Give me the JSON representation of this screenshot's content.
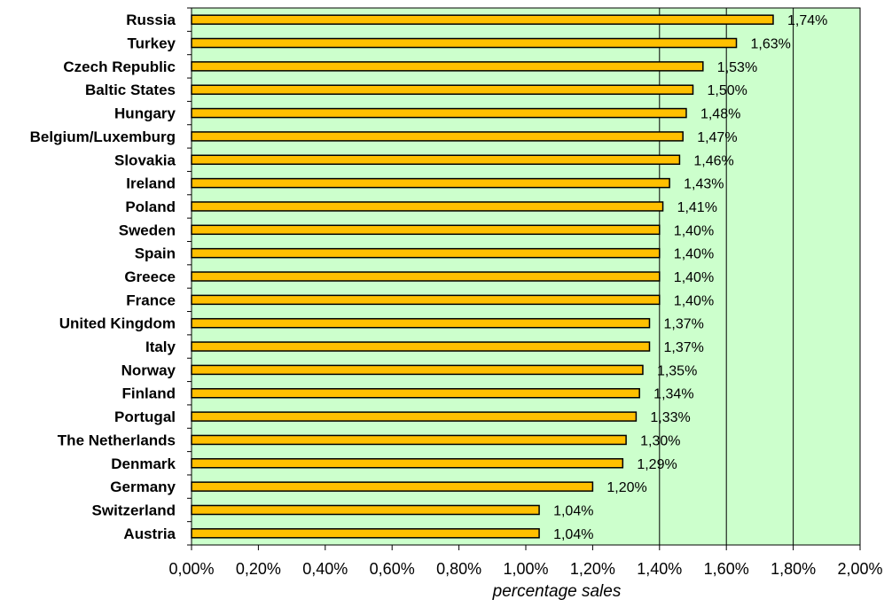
{
  "colors": {
    "plot_background": "#ccffcc",
    "bar_fill": "#ffc000",
    "bar_stroke": "#000000",
    "gridline": "#000000"
  },
  "chart_data": {
    "type": "bar",
    "orientation": "horizontal",
    "categories": [
      "Russia",
      "Turkey",
      "Czech Republic",
      "Baltic States",
      "Hungary",
      "Belgium/Luxemburg",
      "Slovakia",
      "Ireland",
      "Poland",
      "Sweden",
      "Spain",
      "Greece",
      "France",
      "United Kingdom",
      "Italy",
      "Norway",
      "Finland",
      "Portugal",
      "The Netherlands",
      "Denmark",
      "Germany",
      "Switzerland",
      "Austria"
    ],
    "values": [
      1.74,
      1.63,
      1.53,
      1.5,
      1.48,
      1.47,
      1.46,
      1.43,
      1.41,
      1.4,
      1.4,
      1.4,
      1.4,
      1.37,
      1.37,
      1.35,
      1.34,
      1.33,
      1.3,
      1.29,
      1.2,
      1.04,
      1.04
    ],
    "data_labels": [
      "1,74%",
      "1,63%",
      "1,53%",
      "1,50%",
      "1,48%",
      "1,47%",
      "1,46%",
      "1,43%",
      "1,41%",
      "1,40%",
      "1,40%",
      "1,40%",
      "1,40%",
      "1,37%",
      "1,37%",
      "1,35%",
      "1,34%",
      "1,33%",
      "1,30%",
      "1,29%",
      "1,20%",
      "1,04%",
      "1,04%"
    ],
    "x_ticks": [
      0,
      0.2,
      0.4,
      0.6,
      0.8,
      1.0,
      1.2,
      1.4,
      1.6,
      1.8,
      2.0
    ],
    "x_tick_labels": [
      "0,00%",
      "0,20%",
      "0,40%",
      "0,60%",
      "0,80%",
      "1,00%",
      "1,20%",
      "1,40%",
      "1,60%",
      "1,80%",
      "2,00%"
    ],
    "xlim": [
      0,
      2.0
    ],
    "xlabel": "percentage sales",
    "ylabel": "",
    "title": "",
    "grid": "vertical gridlines at 1,40%, 1,60% and 1,80%",
    "gridlines_at": [
      1.4,
      1.6,
      1.8
    ],
    "legend": "none"
  }
}
